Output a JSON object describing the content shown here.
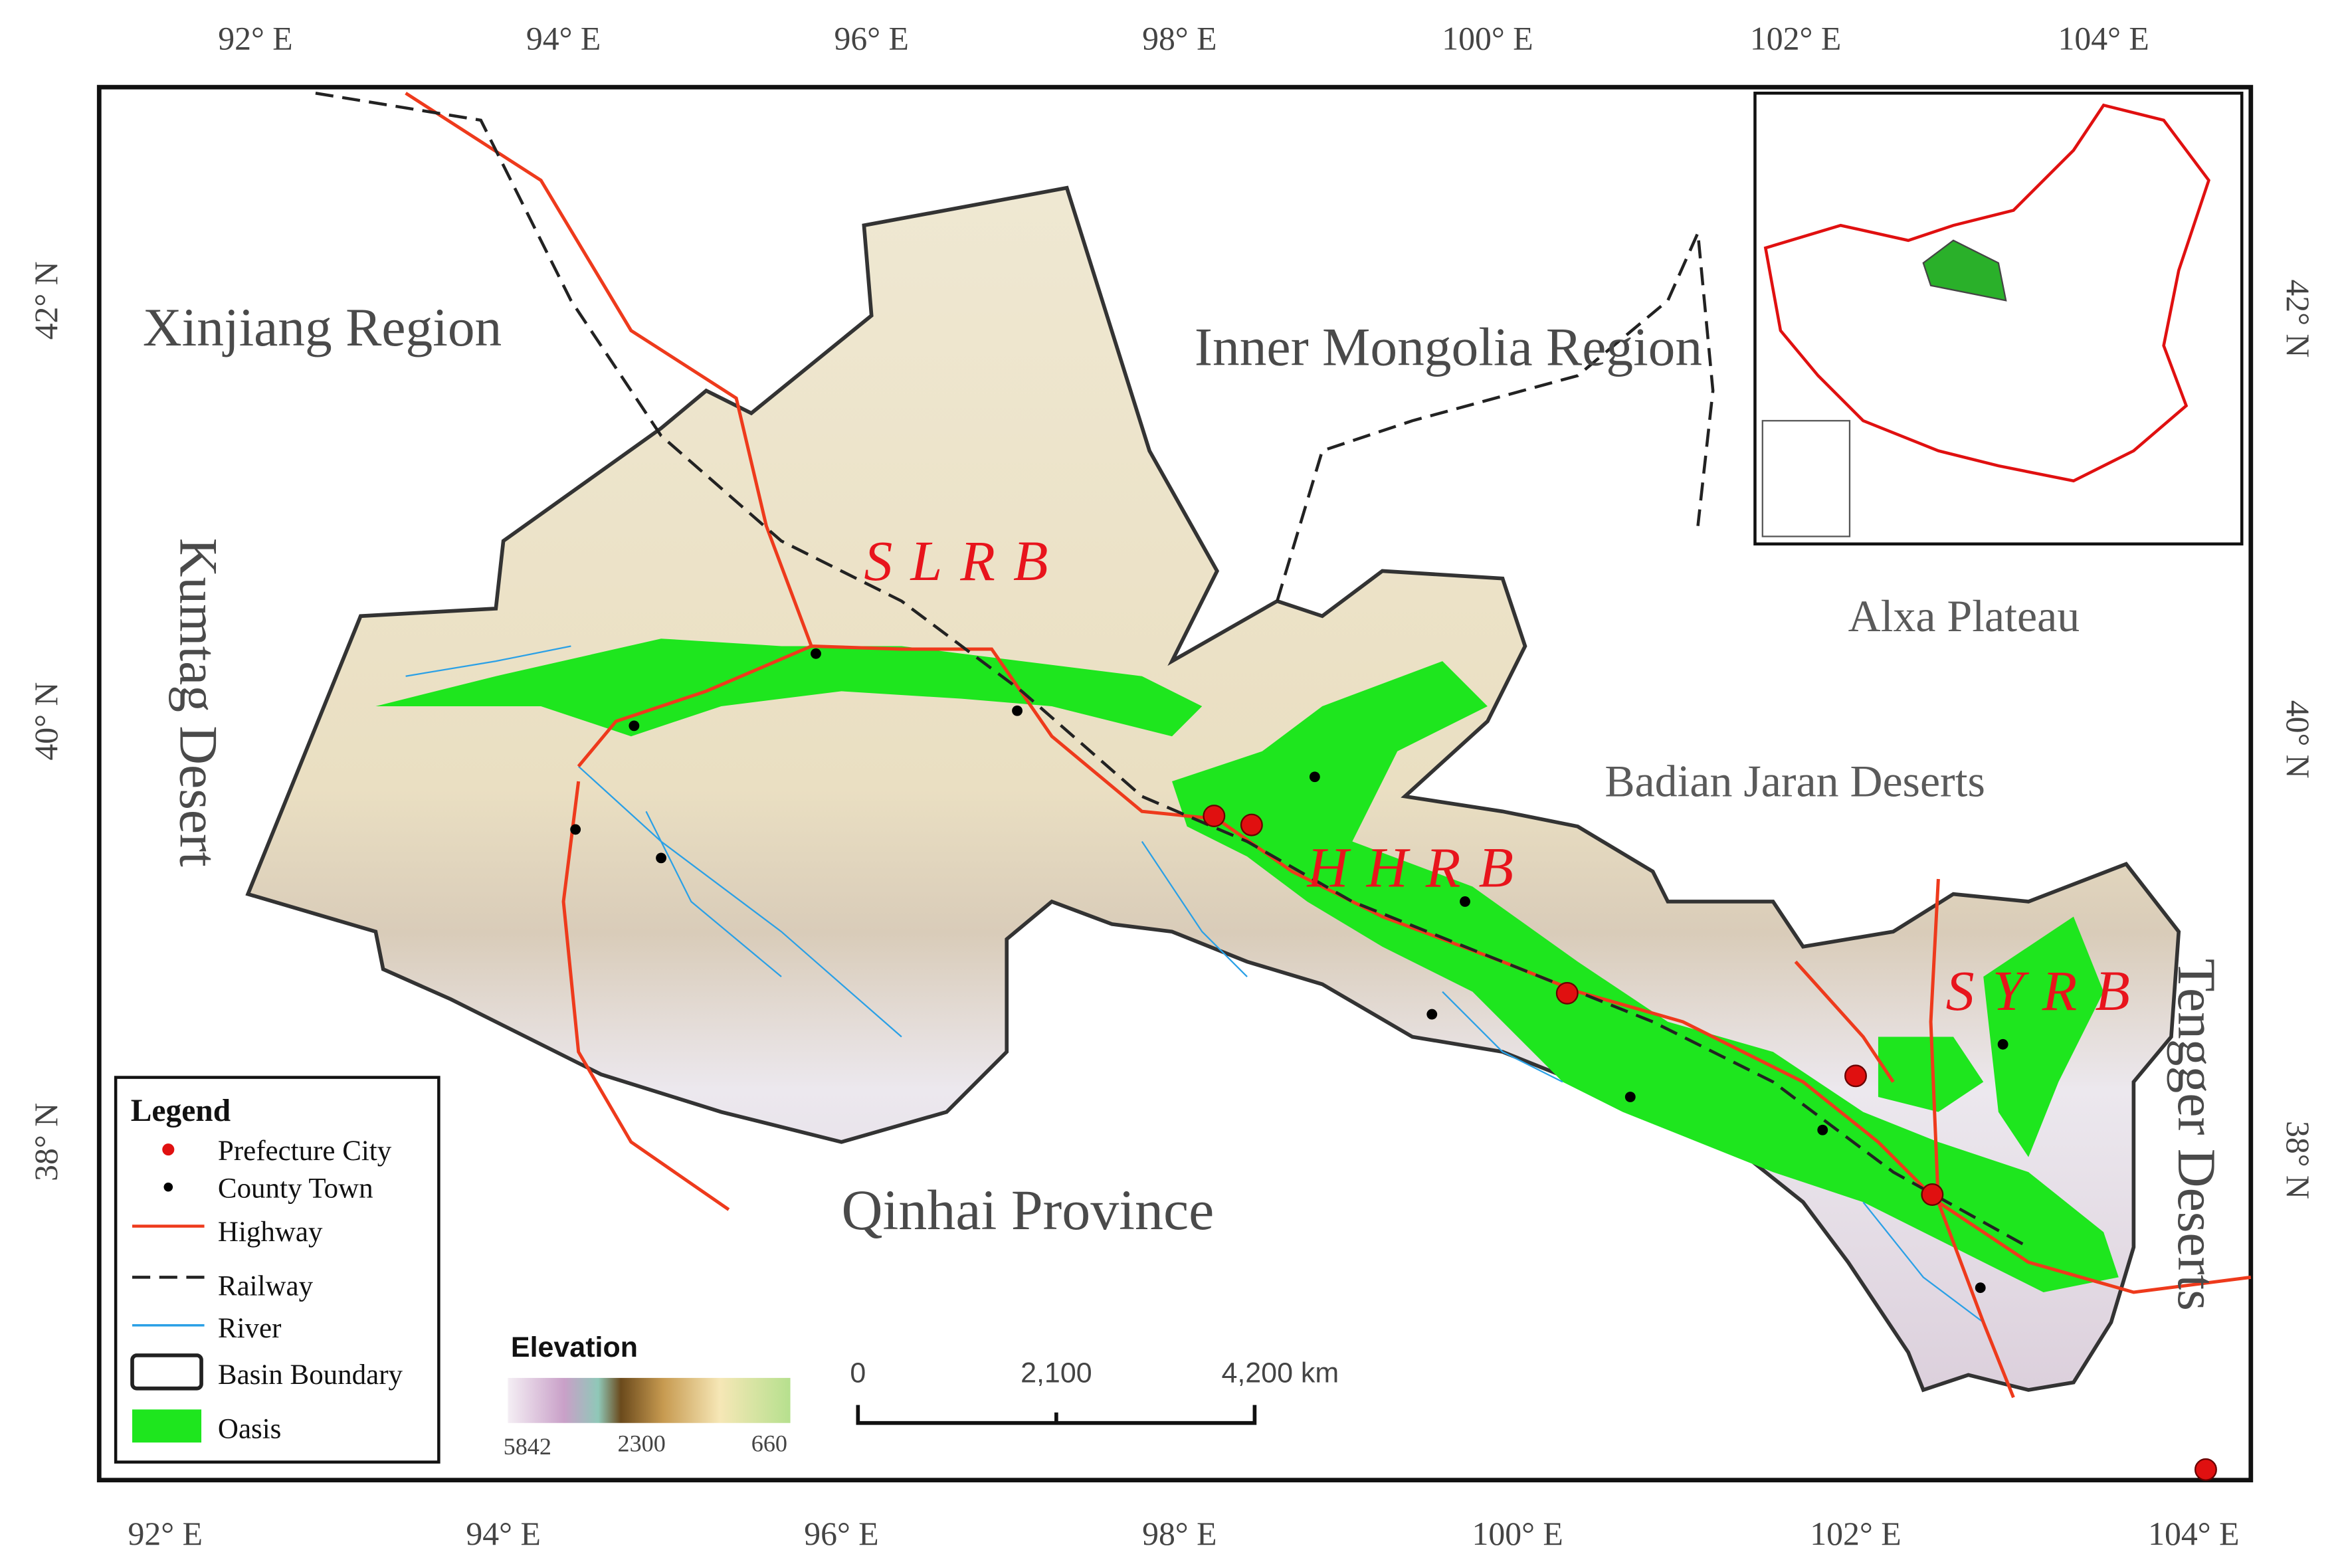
{
  "top_longitudes": [
    "92° E",
    "94° E",
    "96° E",
    "98° E",
    "100° E",
    "102° E",
    "104° E"
  ],
  "bottom_longitudes": [
    "92° E",
    "94° E",
    "96° E",
    "98° E",
    "100° E",
    "102° E",
    "104° E"
  ],
  "left_latitudes": [
    "42° N",
    "40° N",
    "38° N"
  ],
  "right_latitudes": [
    "42° N",
    "40° N",
    "38° N"
  ],
  "regions": {
    "xinjiang": "Xinjiang  Region",
    "inner_mongolia": "Inner Mongolia Region",
    "kumtag": "Kumtag Desert",
    "alxa": "Alxa Plateau",
    "badian": "Badian Jaran Deserts",
    "qinhai": "Qinhai Province",
    "tengger": "Tengger Deserts"
  },
  "basins": [
    "SLRB",
    "HHRB",
    "SYRB"
  ],
  "legend": {
    "title": "Legend",
    "items": [
      "Prefecture City",
      "County Town",
      "Highway",
      "Railway",
      "River",
      "Basin Boundary",
      "Oasis"
    ]
  },
  "elevation": {
    "title": "Elevation",
    "labels": [
      "5842",
      "2300",
      "660"
    ]
  },
  "scale_bar": {
    "labels": [
      "0",
      "2,100",
      "4,200 km"
    ]
  }
}
